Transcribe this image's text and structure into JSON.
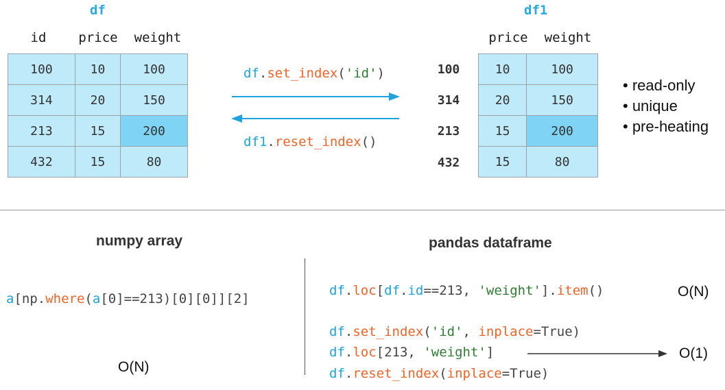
{
  "df": {
    "title": "df",
    "columns": [
      "id",
      "price",
      "weight"
    ],
    "rows": [
      [
        "100",
        "10",
        "100"
      ],
      [
        "314",
        "20",
        "150"
      ],
      [
        "213",
        "15",
        "200"
      ],
      [
        "432",
        "15",
        "80"
      ]
    ]
  },
  "df1": {
    "title": "df1",
    "columns": [
      "price",
      "weight"
    ],
    "index": [
      "100",
      "314",
      "213",
      "432"
    ],
    "rows": [
      [
        "10",
        "100"
      ],
      [
        "20",
        "150"
      ],
      [
        "15",
        "200"
      ],
      [
        "15",
        "80"
      ]
    ]
  },
  "arrows": {
    "set_index": {
      "obj": "df",
      "dot": ".",
      "fn": "set_index",
      "open": "(",
      "arg": "'id'",
      "close": ")"
    },
    "reset_index": {
      "obj": "df1",
      "dot": ".",
      "fn": "reset_index",
      "parens": "()"
    }
  },
  "bullets": [
    "• read-only",
    "• unique",
    "• pre-heating"
  ],
  "numpy": {
    "title": "numpy array",
    "code": {
      "a1": "a",
      "p1": "[np.",
      "where": "where",
      "p2": "(",
      "a2": "a",
      "p3": "[0]==213)[0][0]][2]"
    },
    "complexity": "O(N)"
  },
  "pandas": {
    "title": "pandas dataframe",
    "line1": {
      "df1": "df",
      "dot1": ".",
      "loc": "loc",
      "br1": "[",
      "df2": "df",
      "dot2": ".",
      "id": "id",
      "cmp": "==213, ",
      "w": "'weight'",
      "br2": "].",
      "item": "item",
      "par": "()"
    },
    "line1_complexity": "O(N)",
    "line2": {
      "df": "df",
      "dot": ".",
      "fn": "set_index",
      "open": "(",
      "arg": "'id'",
      "comma": ", ",
      "kw": "inplace",
      "rest": "=True)"
    },
    "line3": {
      "df": "df",
      "dot": ".",
      "loc": "loc",
      "open": "[213, ",
      "w": "'weight'",
      "close": "]"
    },
    "line4": {
      "df": "df",
      "dot": ".",
      "fn": "reset_index",
      "open": "(",
      "kw": "inplace",
      "rest": "=True)"
    },
    "line3_complexity": "O(1)"
  }
}
